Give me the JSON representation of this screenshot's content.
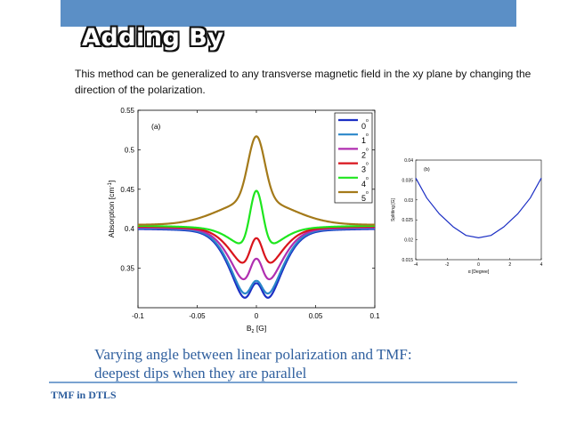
{
  "slide": {
    "title": "Adding By",
    "body": "This method can be generalized to any transverse magnetic field in the xy plane by changing the direction of the  polarization.",
    "caption_line1": "Varying angle between linear polarization and TMF:",
    "caption_line2": "deepest dips when they are parallel",
    "footer": "TMF in DTLS",
    "colors": {
      "topbar": "#5b8fc6",
      "caption": "#2f5f9e"
    }
  },
  "chart_data": [
    {
      "type": "line",
      "panel_label": "(a)",
      "xlabel": "B",
      "xlabel_sub": "z",
      "xlabel_unit": "[G]",
      "ylabel": "Absorption [cm",
      "ylabel_sup": "-1",
      "ylabel_end": "]",
      "xlim": [
        -0.1,
        0.1
      ],
      "ylim": [
        0.3,
        0.55
      ],
      "xticks": [
        -0.1,
        -0.05,
        0,
        0.05,
        0.1
      ],
      "xtick_labels": [
        "-0.1",
        "-0.05",
        "0",
        "0.05",
        "0.1"
      ],
      "yticks": [
        0.35,
        0.4,
        0.45,
        0.5,
        0.55
      ],
      "ytick_labels": [
        "0.35",
        "0.4",
        "0.45",
        "0.5",
        "0.55"
      ],
      "legend_position": "top-right",
      "series": [
        {
          "name": "0",
          "sup": "o",
          "color": "#1c2fc4",
          "base": 0.4,
          "center": 0.335,
          "side": 0.312,
          "dip_depth": 0.045,
          "peak_offset": 0.012
        },
        {
          "name": "1",
          "sup": "o",
          "color": "#2a87c9",
          "base": 0.401,
          "center": 0.338,
          "side": 0.318,
          "dip_depth": 0.041,
          "peak_offset": 0.012
        },
        {
          "name": "2",
          "sup": "o",
          "color": "#b02fb0",
          "base": 0.402,
          "center": 0.366,
          "side": 0.334,
          "dip_depth": 0.033,
          "peak_offset": 0.013
        },
        {
          "name": "3",
          "sup": "o",
          "color": "#d9141c",
          "base": 0.403,
          "center": 0.392,
          "side": 0.355,
          "dip_depth": 0.027,
          "peak_offset": 0.014
        },
        {
          "name": "4",
          "sup": "o",
          "color": "#1ee61e",
          "base": 0.404,
          "center": 0.452,
          "side": 0.38,
          "dip_depth": 0.02,
          "peak_offset": 0.015
        },
        {
          "name": "5",
          "sup": "o",
          "color": "#a47a1a",
          "base": 0.405,
          "center": 0.517,
          "side": 0.0,
          "dip_depth": 0.0,
          "peak_offset": 0.0
        }
      ]
    },
    {
      "type": "line",
      "panel_label": "(b)",
      "xlabel": "α [Degree]",
      "ylabel": "Splitting [G]",
      "xlim": [
        -4,
        4
      ],
      "ylim": [
        0.015,
        0.04
      ],
      "xticks": [
        -4,
        -2,
        0,
        2,
        4
      ],
      "xtick_labels": [
        "-4",
        "-2",
        "0",
        "2",
        "4"
      ],
      "yticks": [
        0.015,
        0.02,
        0.025,
        0.03,
        0.035,
        0.04
      ],
      "ytick_labels": [
        "0.015",
        "0.02",
        "0.025",
        "0.03",
        "0.035",
        "0.04"
      ],
      "series": [
        {
          "name": "splitting",
          "color": "#1c2fc4",
          "x": [
            -4,
            -3.3,
            -2.5,
            -1.6,
            -0.8,
            0,
            0.8,
            1.6,
            2.5,
            3.3,
            4
          ],
          "y": [
            0.0355,
            0.0305,
            0.0265,
            0.0232,
            0.0211,
            0.0205,
            0.0211,
            0.0232,
            0.0265,
            0.0305,
            0.0355
          ]
        }
      ]
    }
  ]
}
